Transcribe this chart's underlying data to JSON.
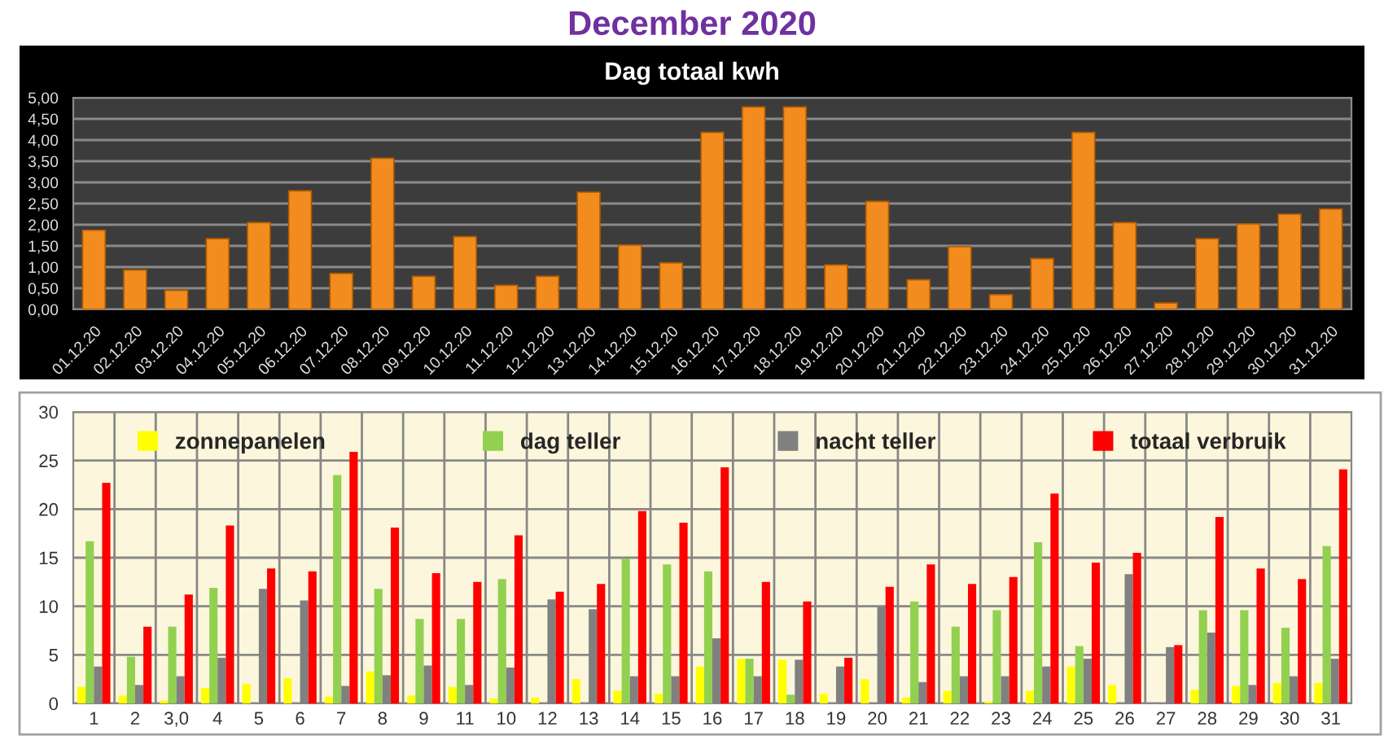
{
  "chart_data": [
    {
      "type": "bar",
      "title": "December 2020",
      "subtitle": "Dag totaal kwh",
      "categories": [
        "01.12.20",
        "02.12.20",
        "03.12.20",
        "04.12.20",
        "05.12.20",
        "06.12.20",
        "07.12.20",
        "08.12.20",
        "09.12.20",
        "10.12.20",
        "11.12.20",
        "12.12.20",
        "13.12.20",
        "14.12.20",
        "15.12.20",
        "16.12.20",
        "17.12.20",
        "18.12.20",
        "19.12.20",
        "20.12.20",
        "21.12.20",
        "22.12.20",
        "23.12.20",
        "24.12.20",
        "25.12.20",
        "26.12.20",
        "27.12.20",
        "28.12.20",
        "29.12.20",
        "30.12.20",
        "31.12.20"
      ],
      "series": [
        {
          "color": "#f28c1e",
          "values": [
            1.87,
            0.93,
            0.45,
            1.67,
            2.05,
            2.8,
            0.85,
            3.57,
            0.78,
            1.72,
            0.57,
            0.78,
            2.77,
            1.52,
            1.1,
            4.18,
            4.78,
            4.78,
            1.05,
            2.55,
            0.7,
            1.48,
            0.35,
            1.2,
            4.18,
            2.05,
            0.15,
            1.67,
            2.02,
            2.25,
            2.37
          ]
        }
      ],
      "ylim": [
        0,
        5
      ],
      "yticks": [
        {
          "value": 0,
          "label": "0,00"
        },
        {
          "value": 0.5,
          "label": "0,50"
        },
        {
          "value": 1,
          "label": "1,00"
        },
        {
          "value": 1.5,
          "label": "1,50"
        },
        {
          "value": 2,
          "label": "2,00"
        },
        {
          "value": 2.5,
          "label": "2,50"
        },
        {
          "value": 3,
          "label": "3,00"
        },
        {
          "value": 3.5,
          "label": "3,50"
        },
        {
          "value": 4,
          "label": "4,00"
        },
        {
          "value": 4.5,
          "label": "4,50"
        },
        {
          "value": 5,
          "label": "5,00"
        }
      ],
      "grid": "y"
    },
    {
      "type": "bar",
      "categories": [
        "1",
        "2",
        "3,0",
        "4",
        "5",
        "6",
        "7",
        "8",
        "9",
        "11",
        "10",
        "12",
        "13",
        "14",
        "15",
        "16",
        "17",
        "18",
        "19",
        "20",
        "21",
        "22",
        "23",
        "24",
        "25",
        "26",
        "27",
        "28",
        "29",
        "30",
        "31"
      ],
      "series": [
        {
          "name": "zonnepanelen",
          "color": "#ffff00",
          "values": [
            1.7,
            0.8,
            0.3,
            1.6,
            2.0,
            2.6,
            0.7,
            3.3,
            0.8,
            1.7,
            0.5,
            0.6,
            2.5,
            1.3,
            1.0,
            3.8,
            4.6,
            4.5,
            1.0,
            2.5,
            0.6,
            1.3,
            0.2,
            1.3,
            3.8,
            1.9,
            0,
            1.4,
            1.8,
            2.1,
            2.1
          ]
        },
        {
          "name": "dag teller",
          "color": "#92d050",
          "values": [
            16.7,
            4.8,
            7.9,
            11.9,
            0,
            0,
            23.5,
            11.8,
            8.7,
            8.7,
            12.8,
            0,
            0,
            14.9,
            14.3,
            13.6,
            4.6,
            0.9,
            0,
            0,
            10.5,
            7.9,
            9.6,
            16.6,
            5.9,
            0,
            0,
            9.6,
            9.6,
            7.8,
            16.2
          ]
        },
        {
          "name": "nacht teller",
          "color": "#808080",
          "values": [
            3.8,
            1.9,
            2.8,
            4.7,
            11.8,
            10.6,
            1.8,
            2.9,
            3.9,
            1.9,
            3.7,
            10.7,
            9.7,
            2.8,
            2.8,
            6.7,
            2.8,
            4.5,
            3.8,
            9.9,
            2.2,
            2.8,
            2.8,
            3.8,
            4.6,
            13.3,
            5.8,
            7.3,
            1.9,
            2.8,
            4.6
          ]
        },
        {
          "name": "totaal verbruik",
          "color": "#ff0000",
          "values": [
            22.7,
            7.9,
            11.2,
            18.3,
            13.9,
            13.6,
            25.9,
            18.1,
            13.4,
            12.5,
            17.3,
            11.5,
            12.3,
            19.8,
            18.6,
            24.3,
            12.5,
            10.5,
            4.7,
            12.0,
            14.3,
            12.3,
            13.0,
            21.6,
            14.5,
            15.5,
            6.0,
            19.2,
            13.9,
            12.8,
            24.1
          ]
        }
      ],
      "ylim": [
        0,
        30
      ],
      "yticks": [
        0,
        5,
        10,
        15,
        20,
        25,
        30
      ],
      "grid": true,
      "legend": "top"
    }
  ]
}
